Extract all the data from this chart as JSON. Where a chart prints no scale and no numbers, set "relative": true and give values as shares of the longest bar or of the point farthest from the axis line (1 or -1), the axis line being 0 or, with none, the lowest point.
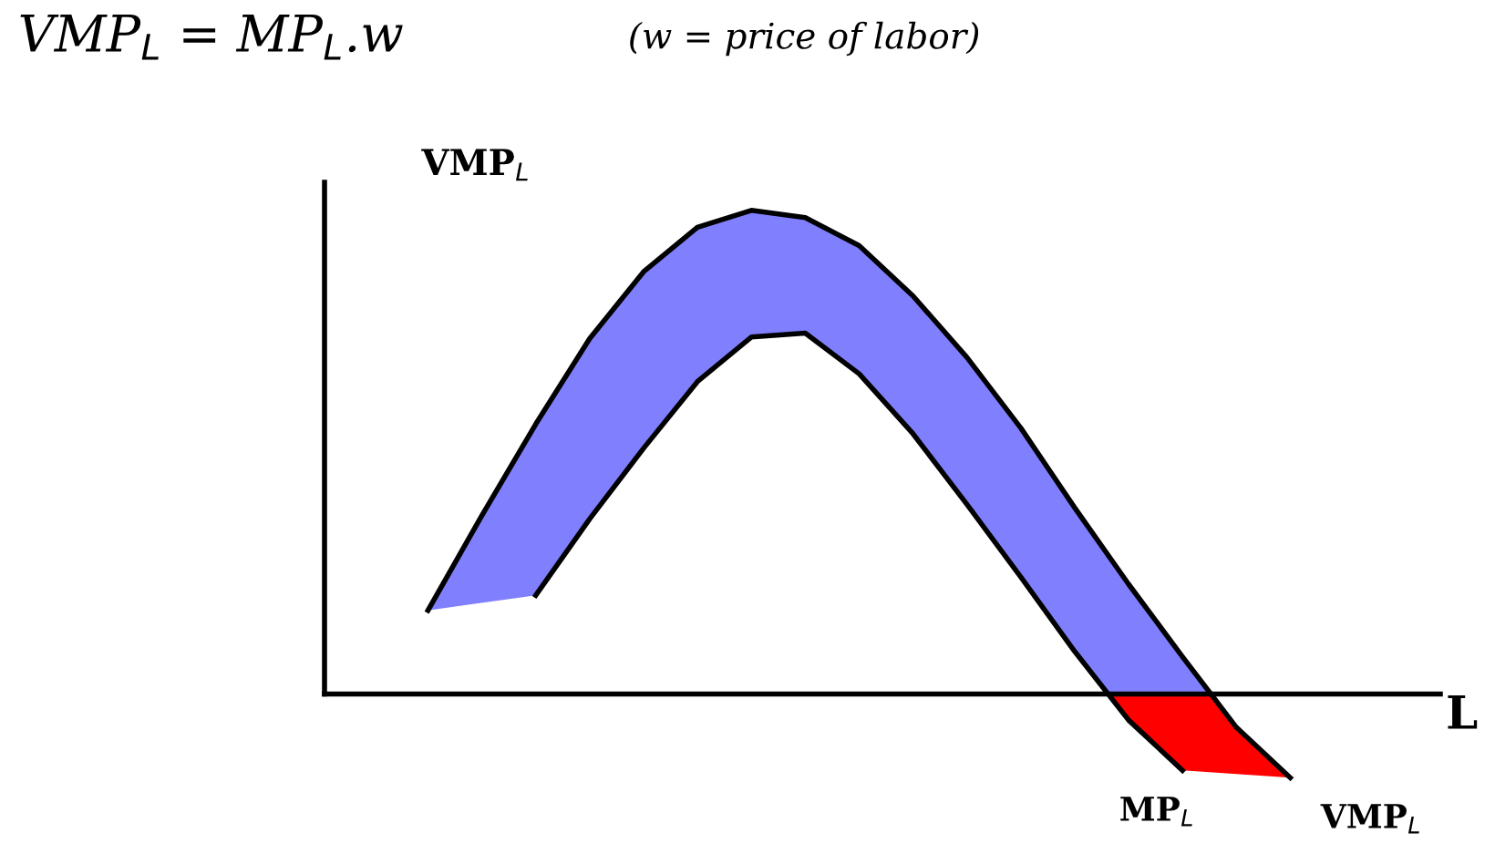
{
  "chart_data": {
    "type": "line",
    "relative": true,
    "title": "VMP$_{L}$ = MP$_{L}$.w",
    "subtitle": "(w = price of labor)",
    "xlabel": "L",
    "ylabel": "VMP$_{L}$",
    "legend": false,
    "grid": false,
    "marker": "none",
    "line_style": "solid",
    "categories": [
      null,
      null,
      null,
      null,
      null,
      null,
      null,
      null,
      null,
      null,
      null,
      null,
      null,
      null,
      null,
      null,
      null
    ],
    "series": [
      {
        "name": "VMP$_{L}$",
        "color": "#000000",
        "colors": [
          "#8080ff",
          "#8080ff",
          "#8080ff",
          "#8080ff",
          "#8080ff",
          "#8080ff",
          "#8080ff",
          "#8080ff",
          "#8080ff",
          "#8080ff",
          "#8080ff",
          "#8080ff",
          "#8080ff",
          "#8080ff",
          "#8080ff",
          "#ff0000",
          "#ff0000"
        ],
        "values": [
          0.173,
          0.369,
          0.558,
          0.735,
          0.873,
          0.965,
          1.0,
          0.985,
          0.927,
          0.823,
          0.696,
          0.55,
          0.385,
          0.227,
          0.077,
          -0.069,
          -0.173
        ]
      },
      {
        "name": "MP$_{L}$",
        "color": "#000000",
        "values": [
          null,
          null,
          0.204,
          0.362,
          0.508,
          0.646,
          0.738,
          0.746,
          0.662,
          0.538,
          0.392,
          0.242,
          0.088,
          -0.054,
          -0.158,
          null,
          null
        ]
      }
    ]
  }
}
